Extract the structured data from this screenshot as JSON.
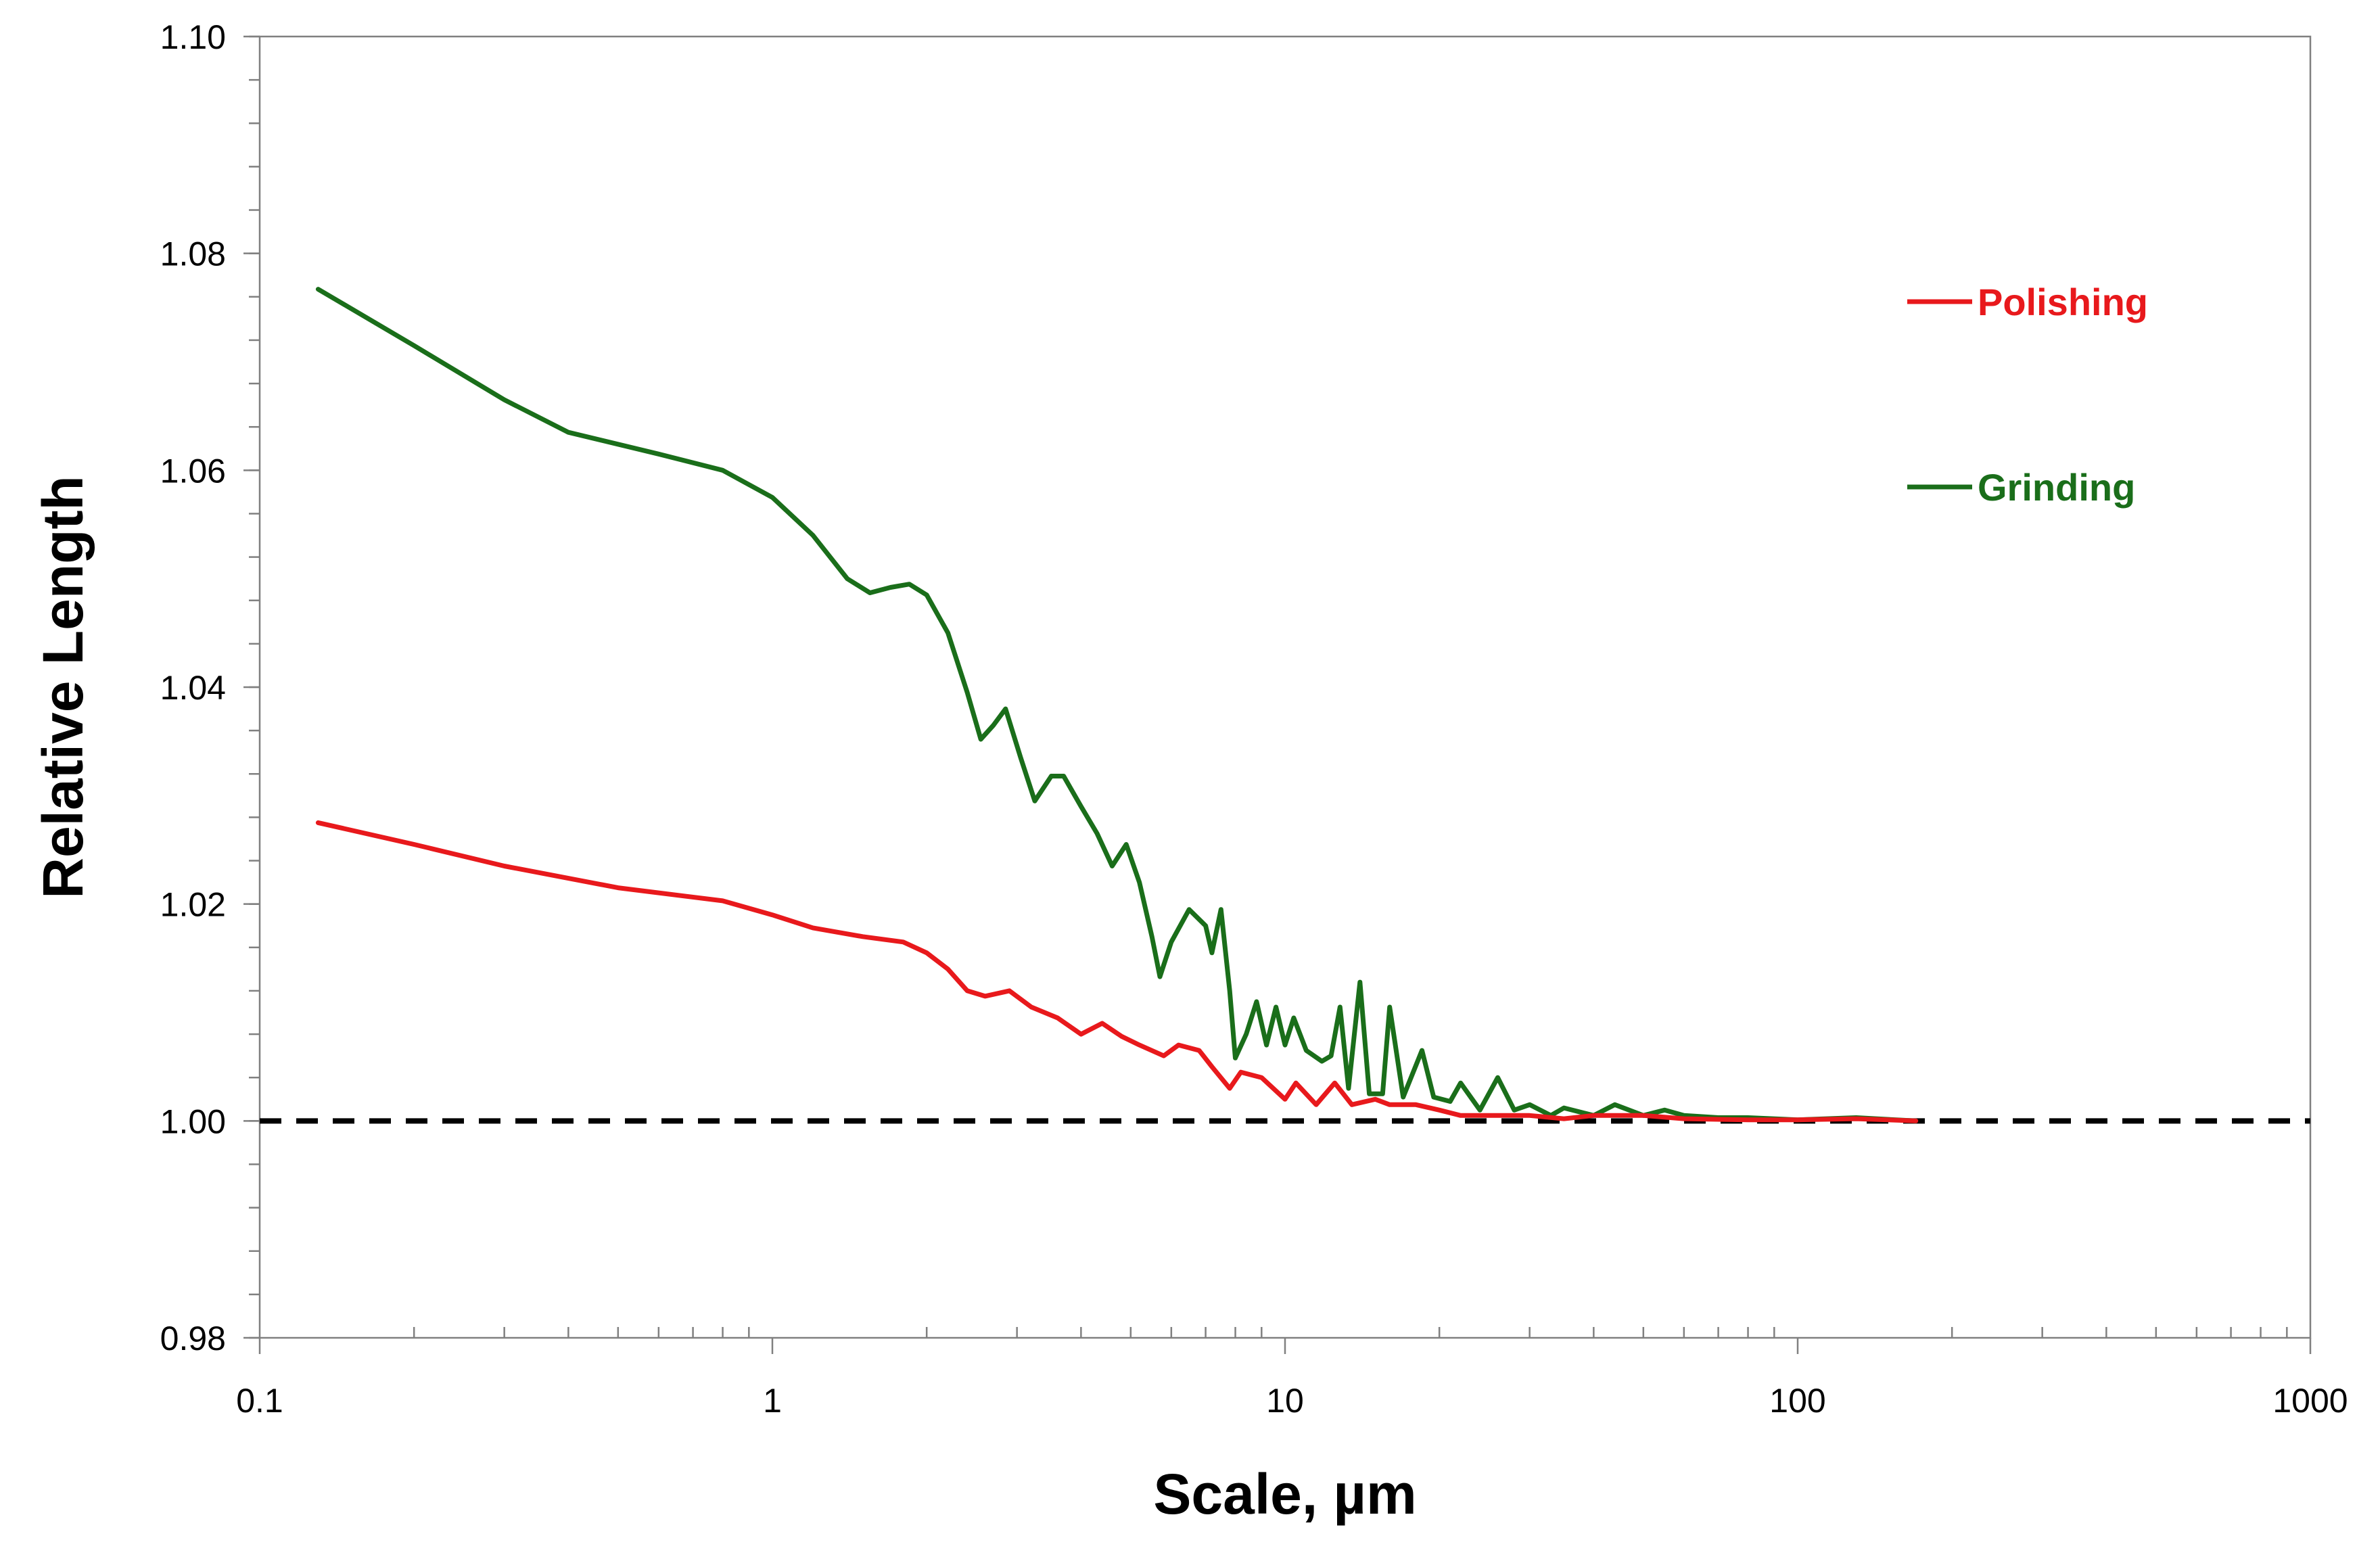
{
  "chart_data": {
    "type": "line",
    "title": "",
    "xlabel": "Scale, µm",
    "ylabel": "Relative Length",
    "x_scale": "log",
    "xlim": [
      0.1,
      1000
    ],
    "ylim": [
      0.98,
      1.1
    ],
    "x_ticks": [
      "0.1",
      "1",
      "10",
      "100",
      "1000"
    ],
    "y_ticks": [
      "0.98",
      "1.00",
      "1.02",
      "1.04",
      "1.06",
      "1.08",
      "1.10"
    ],
    "grid": false,
    "legend_position": "right",
    "reference_line": {
      "y": 1.0,
      "style": "dashed",
      "color": "#000000"
    },
    "series": [
      {
        "name": "Polishing",
        "color": "#e8191c",
        "points": [
          [
            0.13,
            1.0275
          ],
          [
            0.2,
            1.0255
          ],
          [
            0.3,
            1.0235
          ],
          [
            0.5,
            1.0215
          ],
          [
            0.8,
            1.0203
          ],
          [
            1.0,
            1.019
          ],
          [
            1.2,
            1.0178
          ],
          [
            1.5,
            1.017
          ],
          [
            1.8,
            1.0165
          ],
          [
            2.0,
            1.0155
          ],
          [
            2.2,
            1.014
          ],
          [
            2.4,
            1.012
          ],
          [
            2.6,
            1.0115
          ],
          [
            2.9,
            1.012
          ],
          [
            3.2,
            1.0105
          ],
          [
            3.6,
            1.0095
          ],
          [
            4.0,
            1.008
          ],
          [
            4.4,
            1.009
          ],
          [
            4.8,
            1.0078
          ],
          [
            5.2,
            1.007
          ],
          [
            5.8,
            1.006
          ],
          [
            6.2,
            1.007
          ],
          [
            6.8,
            1.0065
          ],
          [
            7.2,
            1.005
          ],
          [
            7.8,
            1.003
          ],
          [
            8.2,
            1.0045
          ],
          [
            9.0,
            1.004
          ],
          [
            10.0,
            1.002
          ],
          [
            10.5,
            1.0035
          ],
          [
            11.5,
            1.0015
          ],
          [
            12.5,
            1.0035
          ],
          [
            13.5,
            1.0015
          ],
          [
            15.0,
            1.002
          ],
          [
            16.0,
            1.0015
          ],
          [
            18.0,
            1.0015
          ],
          [
            20.0,
            1.001
          ],
          [
            22.0,
            1.0005
          ],
          [
            25.0,
            1.0005
          ],
          [
            30.0,
            1.0005
          ],
          [
            35.0,
            1.0002
          ],
          [
            40.0,
            1.0005
          ],
          [
            50.0,
            1.0005
          ],
          [
            60.0,
            1.0002
          ],
          [
            80.0,
            1.0001
          ],
          [
            100.0,
            1.0001
          ],
          [
            130.0,
            1.0002
          ],
          [
            170.0,
            1.0
          ]
        ]
      },
      {
        "name": "Grinding",
        "color": "#1a6e1a",
        "points": [
          [
            0.13,
            1.0767
          ],
          [
            0.2,
            1.0715
          ],
          [
            0.3,
            1.0665
          ],
          [
            0.4,
            1.0635
          ],
          [
            0.6,
            1.0615
          ],
          [
            0.8,
            1.06
          ],
          [
            1.0,
            1.0575
          ],
          [
            1.2,
            1.054
          ],
          [
            1.4,
            1.05
          ],
          [
            1.55,
            1.0487
          ],
          [
            1.7,
            1.0492
          ],
          [
            1.85,
            1.0495
          ],
          [
            2.0,
            1.0485
          ],
          [
            2.2,
            1.045
          ],
          [
            2.4,
            1.0395
          ],
          [
            2.55,
            1.0352
          ],
          [
            2.7,
            1.0365
          ],
          [
            2.85,
            1.038
          ],
          [
            3.05,
            1.0335
          ],
          [
            3.25,
            1.0295
          ],
          [
            3.5,
            1.0318
          ],
          [
            3.7,
            1.0318
          ],
          [
            4.0,
            1.029
          ],
          [
            4.3,
            1.0265
          ],
          [
            4.6,
            1.0235
          ],
          [
            4.9,
            1.0255
          ],
          [
            5.2,
            1.022
          ],
          [
            5.5,
            1.017
          ],
          [
            5.7,
            1.0133
          ],
          [
            6.0,
            1.0165
          ],
          [
            6.5,
            1.0195
          ],
          [
            7.0,
            1.018
          ],
          [
            7.2,
            1.0155
          ],
          [
            7.5,
            1.0195
          ],
          [
            7.8,
            1.012
          ],
          [
            8.0,
            1.0058
          ],
          [
            8.4,
            1.008
          ],
          [
            8.8,
            1.011
          ],
          [
            9.2,
            1.007
          ],
          [
            9.6,
            1.0105
          ],
          [
            10.0,
            1.007
          ],
          [
            10.4,
            1.0095
          ],
          [
            11.0,
            1.0065
          ],
          [
            11.8,
            1.0055
          ],
          [
            12.3,
            1.006
          ],
          [
            12.8,
            1.0105
          ],
          [
            13.3,
            1.003
          ],
          [
            14.0,
            1.0128
          ],
          [
            14.6,
            1.0025
          ],
          [
            15.5,
            1.0025
          ],
          [
            16.0,
            1.0105
          ],
          [
            17.0,
            1.0022
          ],
          [
            18.5,
            1.0065
          ],
          [
            19.5,
            1.0022
          ],
          [
            21.0,
            1.0018
          ],
          [
            22.0,
            1.0035
          ],
          [
            24.0,
            1.001
          ],
          [
            26.0,
            1.004
          ],
          [
            28.0,
            1.001
          ],
          [
            30.0,
            1.0015
          ],
          [
            33.0,
            1.0005
          ],
          [
            35.0,
            1.0012
          ],
          [
            40.0,
            1.0005
          ],
          [
            44.0,
            1.0015
          ],
          [
            50.0,
            1.0005
          ],
          [
            55.0,
            1.001
          ],
          [
            60.0,
            1.0005
          ],
          [
            70.0,
            1.0003
          ],
          [
            80.0,
            1.0003
          ],
          [
            100.0,
            1.0001
          ],
          [
            130.0,
            1.0003
          ],
          [
            170.0,
            1.0
          ]
        ]
      }
    ]
  }
}
